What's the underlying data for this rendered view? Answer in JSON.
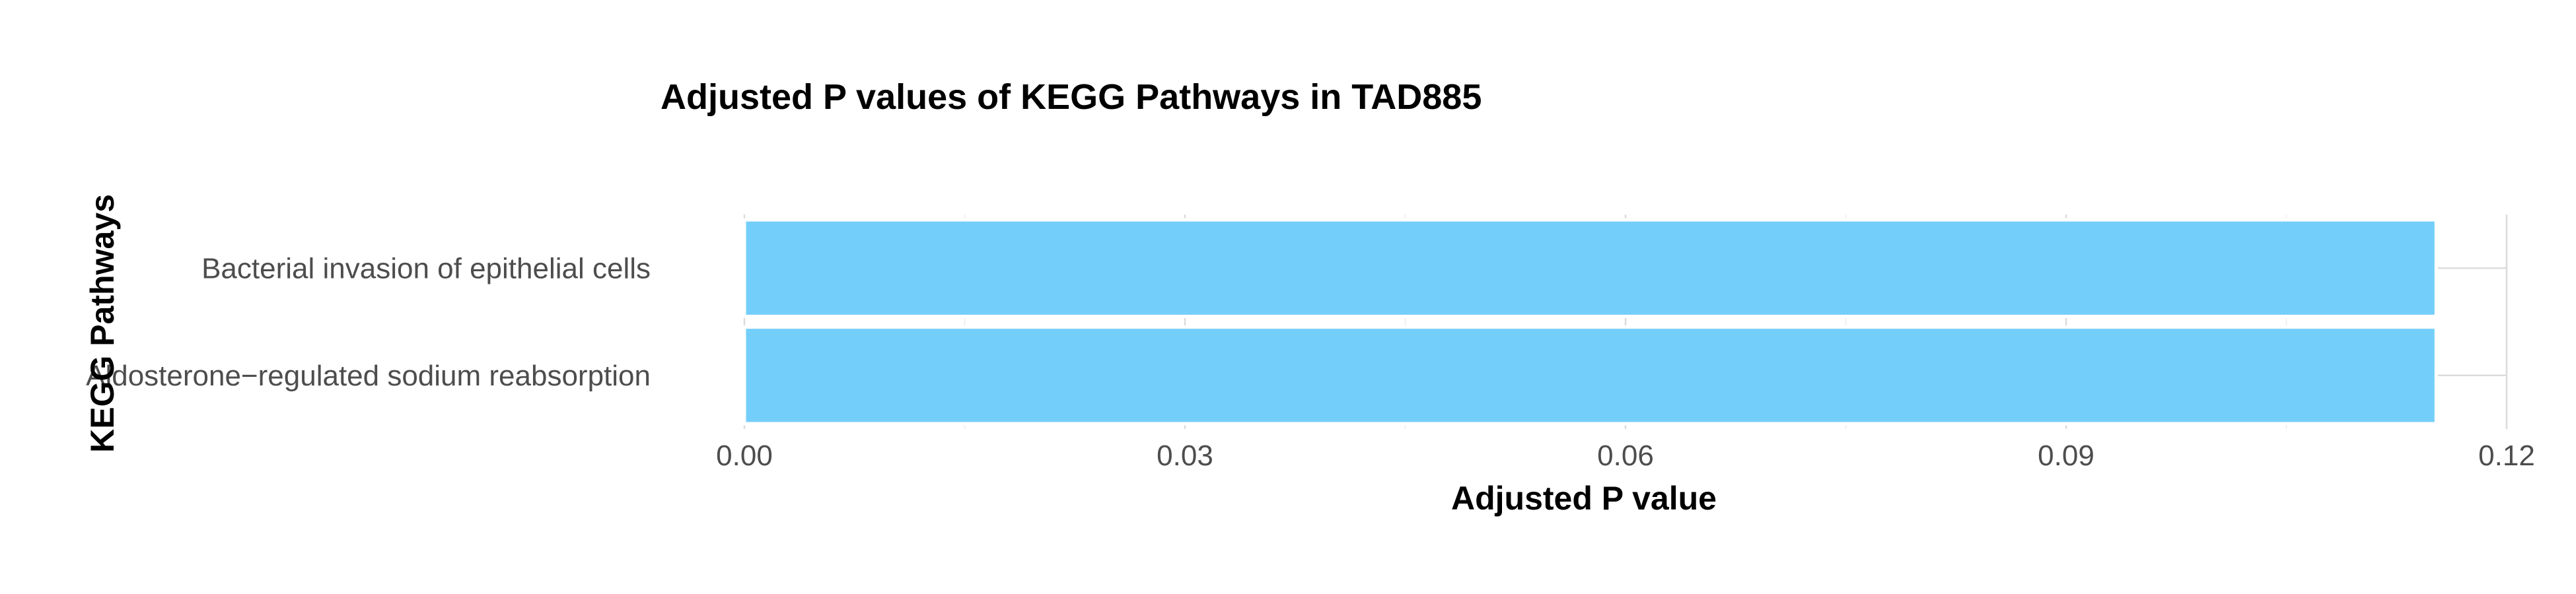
{
  "chart_data": {
    "type": "bar",
    "orientation": "horizontal",
    "title": "Adjusted P values of KEGG Pathways in TAD885",
    "xlabel": "Adjusted P value",
    "ylabel": "KEGG Pathways",
    "categories": [
      "Bacterial invasion of epithelial cells",
      "Aldosterone−regulated sodium reabsorption"
    ],
    "values": [
      0.1152,
      0.1152
    ],
    "xlim": [
      0,
      0.12
    ],
    "xticks": [
      0.0,
      0.03,
      0.06,
      0.09,
      0.12
    ],
    "xtick_labels": [
      "0.00",
      "0.03",
      "0.06",
      "0.09",
      "0.12"
    ],
    "grid": true,
    "legend": "none",
    "colors": {
      "bar": "#74CEFA",
      "bar_outline": "#FFFFFF"
    }
  }
}
